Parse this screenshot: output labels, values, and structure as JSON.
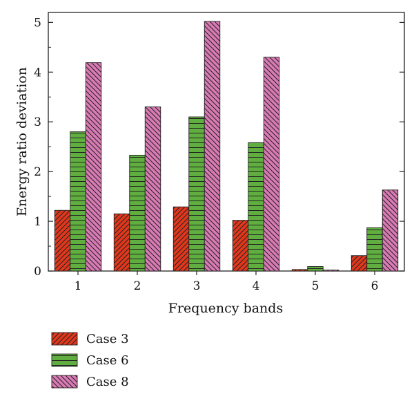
{
  "chart_data": {
    "type": "bar",
    "categories": [
      "1",
      "2",
      "3",
      "4",
      "5",
      "6"
    ],
    "series": [
      {
        "name": "Case 3",
        "values": [
          1.22,
          1.15,
          1.29,
          1.02,
          0.03,
          0.31
        ],
        "color": "#e2371c",
        "pattern": "diagonal-forward-hatch"
      },
      {
        "name": "Case 6",
        "values": [
          2.8,
          2.33,
          3.1,
          2.58,
          0.09,
          0.87
        ],
        "color": "#5fae3f",
        "pattern": "horizontal-hatch"
      },
      {
        "name": "Case 8",
        "values": [
          4.19,
          3.3,
          5.02,
          4.3,
          0.02,
          1.63
        ],
        "color": "#d97ab4",
        "pattern": "diagonal-backward-hatch"
      }
    ],
    "xlabel": "Frequency bands",
    "ylabel": "Energy ratio deviation",
    "yticks": [
      "0",
      "1",
      "2",
      "3",
      "4",
      "5"
    ],
    "ylim": [
      0,
      5.2
    ],
    "grid": false,
    "legend_position": "bottom-left"
  }
}
